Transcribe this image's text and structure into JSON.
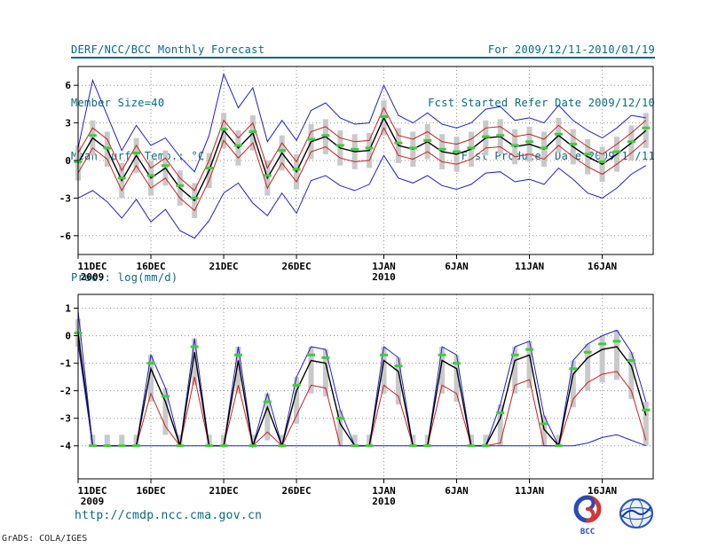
{
  "header": {
    "left_lines": [
      "DERF/NCC/BCC Monthly Forecast",
      "Member Size=40",
      "Mean Surf. Temp.: °C"
    ],
    "right_lines": [
      "For 2009/12/11-2010/01/19",
      "Fcst Started Refer Date 2009/12/10",
      "Fcst Produced Date 2009/12/11"
    ],
    "accent_color": "#0a6880"
  },
  "footer": {
    "url": "http://cmdp.ncc.cma.gov.cn",
    "credit": "GrADS: COLA/IGES",
    "bcc_label": "BCC"
  },
  "chart_data": [
    {
      "name": "temp-panel",
      "type": "line",
      "title": "Mean Surf. Temp.: °C",
      "xlabel": "",
      "ylabel": "",
      "xlim": [
        0,
        39.5
      ],
      "ylim": [
        -7.5,
        7.5
      ],
      "yticks": [
        6,
        3,
        0,
        -3,
        -6
      ],
      "x_ticks": [
        0,
        5,
        10,
        15,
        21,
        26,
        31,
        36
      ],
      "x_tick_labels": [
        "11DEC",
        "16DEC",
        "21DEC",
        "26DEC",
        "1JAN",
        "6JAN",
        "11JAN",
        "16JAN"
      ],
      "x_tick_sublabels": [
        "2009",
        "",
        "",
        "",
        "2010",
        "",
        "",
        ""
      ],
      "grid": true,
      "legend": false,
      "bars": {
        "name": "ensemble-spread-bar",
        "color": "#c9c9c9",
        "high": [
          1.2,
          3.2,
          2.3,
          -0.2,
          1.8,
          0.0,
          0.8,
          -0.8,
          -1.8,
          0.6,
          3.8,
          2.4,
          3.6,
          0.0,
          2.0,
          0.5,
          2.9,
          3.3,
          2.4,
          2.1,
          2.2,
          4.8,
          2.6,
          2.3,
          2.9,
          2.1,
          1.9,
          2.3,
          3.2,
          3.3,
          2.5,
          2.7,
          2.3,
          3.4,
          2.5,
          1.7,
          1.1,
          1.9,
          2.8,
          3.8
        ],
        "low": [
          -1.6,
          0.4,
          -0.5,
          -3.0,
          -1.0,
          -2.8,
          -2.0,
          -3.6,
          -4.6,
          -2.2,
          1.0,
          -0.4,
          0.8,
          -2.8,
          -0.8,
          -2.3,
          0.1,
          0.5,
          -0.4,
          -0.7,
          -0.6,
          2.0,
          -0.2,
          -0.5,
          0.1,
          -0.7,
          -0.9,
          -0.5,
          0.4,
          0.5,
          -0.3,
          -0.1,
          -0.5,
          0.6,
          -0.3,
          -1.1,
          -1.7,
          -0.9,
          0.0,
          1.0
        ]
      },
      "markers": {
        "name": "observation-marker",
        "color": "#3fcc3f",
        "values": [
          -0.1,
          2.0,
          1.0,
          -1.4,
          0.6,
          -1.2,
          -0.4,
          -2.0,
          -3.0,
          -0.6,
          2.5,
          1.2,
          2.3,
          -1.2,
          0.8,
          -0.7,
          1.7,
          2.0,
          1.2,
          0.9,
          1.0,
          3.5,
          1.4,
          1.0,
          1.6,
          0.9,
          0.7,
          1.0,
          1.9,
          2.0,
          1.2,
          1.5,
          1.0,
          2.1,
          1.3,
          0.5,
          -0.1,
          0.7,
          1.5,
          2.6
        ]
      },
      "series": [
        {
          "name": "ensemble-max",
          "color": "#2020c8",
          "values": [
            1.0,
            6.4,
            3.6,
            0.8,
            2.8,
            1.2,
            1.8,
            0.3,
            -0.9,
            2.0,
            6.9,
            4.2,
            5.8,
            1.5,
            3.2,
            1.6,
            4.0,
            4.6,
            3.4,
            2.9,
            3.0,
            6.0,
            3.6,
            3.0,
            3.8,
            2.9,
            2.6,
            3.0,
            4.1,
            4.3,
            3.2,
            3.4,
            3.0,
            4.4,
            3.2,
            2.4,
            1.8,
            2.6,
            3.6,
            3.4
          ]
        },
        {
          "name": "upper-quartile",
          "color": "#c82020",
          "values": [
            0.6,
            2.6,
            1.7,
            -0.8,
            1.2,
            -0.6,
            0.2,
            -1.4,
            -2.4,
            0.0,
            3.2,
            1.8,
            3.0,
            -0.6,
            1.4,
            -0.1,
            2.3,
            2.7,
            1.8,
            1.5,
            1.6,
            4.2,
            2.0,
            1.7,
            2.3,
            1.5,
            1.3,
            1.7,
            2.6,
            2.7,
            1.9,
            2.1,
            1.7,
            2.8,
            1.9,
            1.1,
            0.5,
            1.3,
            2.2,
            3.2
          ]
        },
        {
          "name": "ensemble-mean",
          "color": "#000000",
          "values": [
            -0.2,
            1.8,
            0.9,
            -1.6,
            0.4,
            -1.4,
            -0.6,
            -2.2,
            -3.2,
            -0.8,
            2.4,
            1.0,
            2.2,
            -1.4,
            0.6,
            -0.9,
            1.5,
            1.9,
            1.0,
            0.7,
            0.8,
            3.4,
            1.2,
            0.9,
            1.5,
            0.7,
            0.5,
            0.9,
            1.8,
            1.9,
            1.1,
            1.3,
            0.9,
            2.0,
            1.1,
            0.3,
            -0.3,
            0.5,
            1.4,
            2.4
          ]
        },
        {
          "name": "lower-quartile",
          "color": "#c82020",
          "values": [
            -1.0,
            1.0,
            0.1,
            -2.4,
            -0.4,
            -2.2,
            -1.4,
            -3.0,
            -4.0,
            -1.6,
            1.6,
            0.2,
            1.4,
            -2.2,
            -0.2,
            -1.7,
            0.7,
            1.1,
            0.2,
            -0.1,
            0.0,
            2.6,
            0.4,
            0.1,
            0.7,
            -0.1,
            -0.3,
            0.1,
            1.0,
            1.1,
            0.3,
            0.5,
            0.1,
            1.2,
            0.3,
            -0.5,
            -1.1,
            -0.3,
            0.6,
            1.6
          ]
        },
        {
          "name": "ensemble-min",
          "color": "#2020c8",
          "values": [
            -3.0,
            -2.4,
            -3.3,
            -4.6,
            -3.1,
            -4.9,
            -3.9,
            -5.6,
            -6.2,
            -4.8,
            -2.6,
            -1.8,
            -3.4,
            -4.4,
            -2.6,
            -4.2,
            -1.6,
            -1.2,
            -2.0,
            -2.4,
            -1.9,
            0.4,
            -1.4,
            -1.8,
            -1.2,
            -2.0,
            -2.3,
            -1.9,
            -1.0,
            -0.9,
            -1.7,
            -1.5,
            -1.9,
            -0.6,
            -1.5,
            -2.6,
            -3.0,
            -2.2,
            -1.1,
            -0.4
          ]
        }
      ]
    },
    {
      "name": "precip-panel",
      "type": "line",
      "title": "Prec.: log(mm/d)",
      "xlabel": "",
      "ylabel": "",
      "xlim": [
        0,
        39.5
      ],
      "ylim": [
        -5.2,
        1.5
      ],
      "yticks": [
        1,
        0,
        -1,
        -2,
        -3,
        -4
      ],
      "x_ticks": [
        0,
        5,
        10,
        15,
        21,
        26,
        31,
        36
      ],
      "x_tick_labels": [
        "11DEC",
        "16DEC",
        "21DEC",
        "26DEC",
        "1JAN",
        "6JAN",
        "11JAN",
        "16JAN"
      ],
      "x_tick_sublabels": [
        "2009",
        "",
        "",
        "",
        "2010",
        "",
        "",
        ""
      ],
      "grid": true,
      "legend": false,
      "bars": {
        "name": "ensemble-spread-bar",
        "color": "#c9c9c9",
        "high": [
          0.6,
          -3.6,
          -3.6,
          -3.6,
          -3.6,
          -0.7,
          -1.9,
          -3.6,
          -0.1,
          -3.6,
          -3.6,
          -0.4,
          -3.6,
          -2.1,
          -3.6,
          -1.5,
          -0.4,
          -0.5,
          -2.7,
          -3.6,
          -3.6,
          -0.4,
          -0.8,
          -3.6,
          -3.6,
          -0.4,
          -0.7,
          -3.6,
          -3.6,
          -2.5,
          -0.4,
          -0.2,
          -2.9,
          -3.6,
          -0.9,
          -0.3,
          0.0,
          0.2,
          -0.6,
          -2.4
        ],
        "low": [
          -0.4,
          -4,
          -4,
          -4,
          -4,
          -2.4,
          -3.6,
          -4,
          -1.8,
          -4,
          -4,
          -2.1,
          -4,
          -3.8,
          -4,
          -3.2,
          -2.1,
          -2.2,
          -4,
          -4,
          -4,
          -2.1,
          -2.5,
          -4,
          -4,
          -2.1,
          -2.4,
          -4,
          -4,
          -4,
          -2.1,
          -1.9,
          -4,
          -4,
          -2.6,
          -2.0,
          -1.7,
          -1.6,
          -2.3,
          -4
        ]
      },
      "markers": {
        "name": "observation-marker",
        "color": "#3fcc3f",
        "values": [
          0.1,
          -4,
          -4,
          -4,
          -4,
          -1.0,
          -2.2,
          -4,
          -0.4,
          -4,
          -4,
          -0.7,
          -4,
          -2.4,
          -4,
          -1.8,
          -0.7,
          -0.8,
          -3.0,
          -4,
          -4,
          -0.7,
          -1.1,
          -4,
          -4,
          -0.7,
          -1.0,
          -4,
          -4,
          -2.8,
          -0.7,
          -0.5,
          -3.2,
          -4,
          -1.2,
          -0.6,
          -0.3,
          -0.2,
          -0.9,
          -2.7
        ]
      },
      "series": [
        {
          "name": "ensemble-max",
          "color": "#2020c8",
          "values": [
            0.9,
            -4,
            -4,
            -4,
            -4,
            -0.7,
            -1.9,
            -4,
            -0.1,
            -4,
            -4,
            -0.4,
            -4,
            -2.1,
            -4,
            -1.5,
            -0.4,
            -0.5,
            -2.7,
            -4,
            -4,
            -0.4,
            -0.8,
            -4,
            -4,
            -0.4,
            -0.7,
            -4,
            -4,
            -2.5,
            -0.4,
            -0.2,
            -2.9,
            -4,
            -0.9,
            -0.3,
            0.0,
            0.2,
            -0.6,
            -2.4
          ]
        },
        {
          "name": "lower-quartile",
          "color": "#c82020",
          "values": [
            -0.2,
            -4,
            -4,
            -4,
            -4,
            -2.1,
            -3.3,
            -4,
            -1.5,
            -4,
            -4,
            -1.8,
            -4,
            -3.5,
            -4,
            -2.9,
            -1.8,
            -1.9,
            -4,
            -4,
            -4,
            -1.8,
            -2.2,
            -4,
            -4,
            -1.8,
            -2.1,
            -4,
            -4,
            -3.9,
            -1.8,
            -1.6,
            -4,
            -4,
            -2.3,
            -1.7,
            -1.4,
            -1.3,
            -2.0,
            -3.8
          ]
        },
        {
          "name": "ensemble-mean",
          "color": "#000000",
          "values": [
            0.1,
            -4,
            -4,
            -4,
            -4,
            -1.2,
            -2.4,
            -4,
            -0.6,
            -4,
            -4,
            -0.9,
            -4,
            -2.6,
            -4,
            -2.0,
            -0.9,
            -1.0,
            -3.2,
            -4,
            -4,
            -0.9,
            -1.3,
            -4,
            -4,
            -0.9,
            -1.2,
            -4,
            -4,
            -3.0,
            -0.9,
            -0.7,
            -3.4,
            -4,
            -1.4,
            -0.8,
            -0.5,
            -0.4,
            -1.1,
            -2.9
          ]
        },
        {
          "name": "ensemble-min",
          "color": "#2020c8",
          "values": [
            -0.3,
            -4,
            -4,
            -4,
            -4,
            -4,
            -4,
            -4,
            -4,
            -4,
            -4,
            -4,
            -4,
            -4,
            -4,
            -4,
            -4,
            -4,
            -4,
            -4,
            -4,
            -4,
            -4,
            -4,
            -4,
            -4,
            -4,
            -4,
            -4,
            -4,
            -4,
            -4,
            -4,
            -4,
            -4,
            -3.9,
            -3.7,
            -3.6,
            -3.8,
            -4
          ]
        }
      ]
    }
  ]
}
